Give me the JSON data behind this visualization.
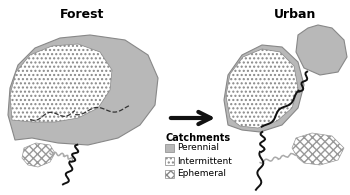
{
  "title_forest": "Forest",
  "title_urban": "Urban",
  "legend_title": "Catchments",
  "legend_items": [
    "Perennial",
    "Intermittent",
    "Ephemeral"
  ],
  "bg_color": "#ffffff",
  "perennial_color": "#b8b8b8",
  "perennial_edge": "#888888",
  "intermittent_hatch": "....",
  "ephemeral_hatch": "xxxx",
  "arrow_color": "#111111",
  "stream_perennial_color": "#111111",
  "stream_ephemeral_color": "#aaaaaa",
  "title_fontsize": 9,
  "legend_fontsize": 6.5,
  "legend_title_fontsize": 7
}
